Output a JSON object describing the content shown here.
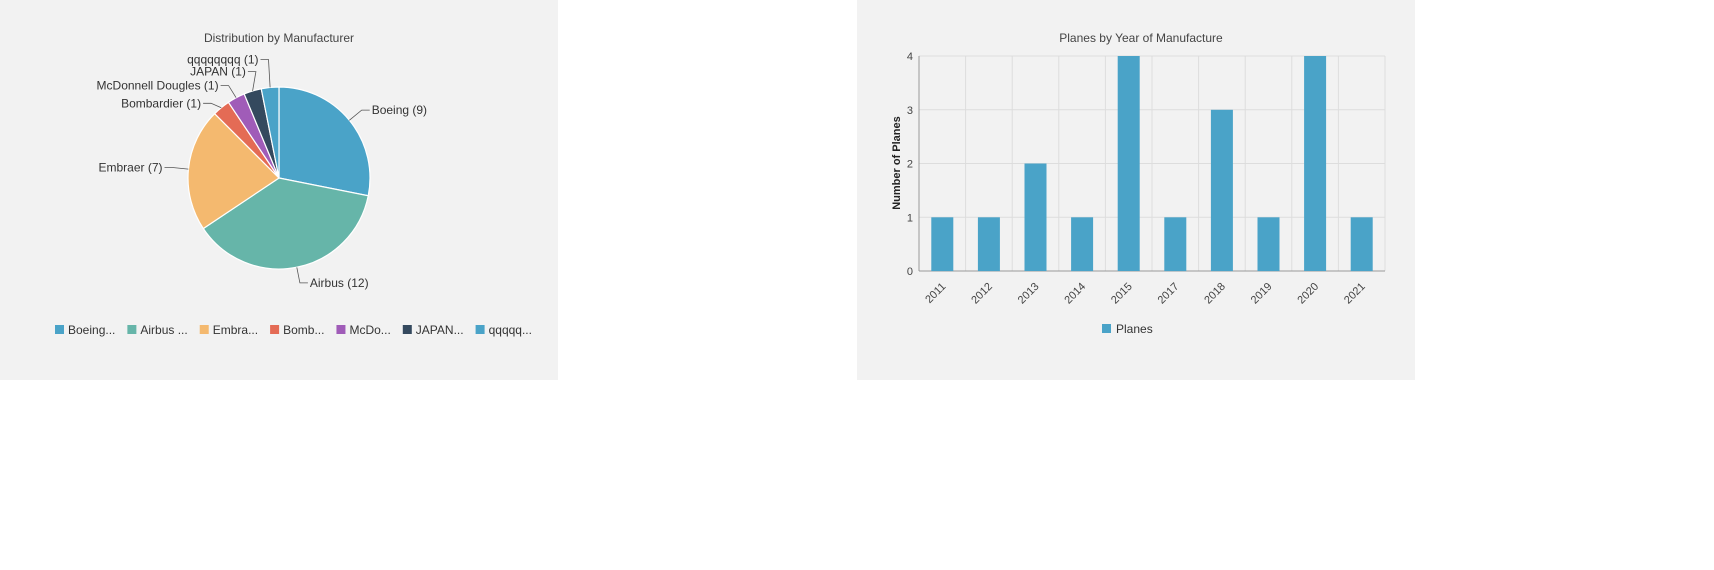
{
  "charts": {
    "pie": {
      "title": "Distribution by Manufacturer",
      "slice_labels": [
        "Boeing (9)",
        "Airbus (12)",
        "Embraer (7)",
        "Bombardier (1)",
        "McDonnell Dougles (1)",
        "JAPAN (1)",
        "qqqqqqqq (1)"
      ],
      "legend_labels": [
        "Boeing...",
        "Airbus ...",
        "Embra...",
        "Bomb...",
        "McDo...",
        "JAPAN...",
        "qqqqq..."
      ]
    },
    "bar": {
      "title": "Planes by Year of Manufacture",
      "ylabel": "Number of Planes",
      "legend_label": "Planes"
    }
  },
  "chart_data": [
    {
      "type": "pie",
      "title": "Distribution by Manufacturer",
      "categories": [
        "Boeing",
        "Airbus",
        "Embraer",
        "Bombardier",
        "McDonnell Dougles",
        "JAPAN",
        "qqqqqqqq"
      ],
      "values": [
        9,
        12,
        7,
        1,
        1,
        1,
        1
      ],
      "colors": [
        "#4aa3c8",
        "#66b5a9",
        "#f4b96f",
        "#e46b55",
        "#a05cb8",
        "#34495e",
        "#4aa3c8"
      ],
      "legend_position": "bottom"
    },
    {
      "type": "bar",
      "title": "Planes by Year of Manufacture",
      "categories": [
        "2011",
        "2012",
        "2013",
        "2014",
        "2015",
        "2017",
        "2018",
        "2019",
        "2020",
        "2021"
      ],
      "series": [
        {
          "name": "Planes",
          "values": [
            1,
            1,
            2,
            1,
            4,
            1,
            3,
            1,
            4,
            1
          ]
        }
      ],
      "xlabel": "",
      "ylabel": "Number of Planes",
      "ylim": [
        0,
        4
      ],
      "yticks": [
        0,
        1,
        2,
        3,
        4
      ],
      "color": "#4aa3c8",
      "grid": true,
      "legend_position": "bottom"
    }
  ]
}
